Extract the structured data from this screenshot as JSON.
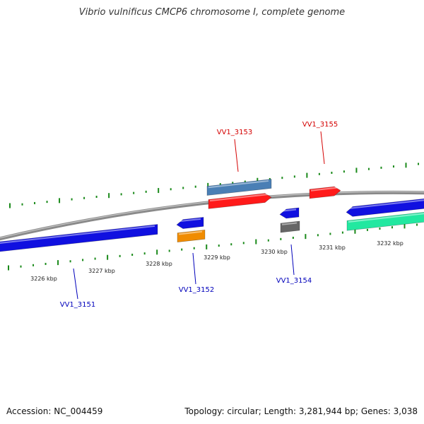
{
  "title": "Vibrio vulnificus CMCP6 chromosome I, complete genome",
  "accession_text": "Accession: NC_004459",
  "summary_text": "Topology: circular; Length: 3,281,944 bp; Genes: 3,038",
  "colors": {
    "backbone": "#8a8a8a",
    "tick": "#1a8a1a",
    "label_forward": "#d40000",
    "label_reverse": "#0000bb",
    "kbp_label": "#222222"
  },
  "kbp_labels": [
    "3226 kbp",
    "3227 kbp",
    "3228 kbp",
    "3229 kbp",
    "3230 kbp",
    "3231 kbp",
    "3232 kbp"
  ],
  "genes": [
    {
      "label": "VV1_3151",
      "strand": "reverse",
      "color": "#1010e0"
    },
    {
      "label": "VV1_3152",
      "strand": "reverse",
      "color": "#1010e0"
    },
    {
      "label": "VV1_3153",
      "strand": "forward",
      "color": "#ff1a1a"
    },
    {
      "label": "VV1_3154",
      "strand": "reverse",
      "color": "#1010e0"
    },
    {
      "label": "VV1_3155",
      "strand": "forward",
      "color": "#ff1a1a"
    }
  ],
  "features": [
    {
      "name": "VV1_3153-feature",
      "color": "#4a7fb5"
    },
    {
      "name": "VV1_3153-cds",
      "color": "#ff1a1a"
    },
    {
      "name": "VV1_3155-cds",
      "color": "#ff1a1a"
    },
    {
      "name": "VV1_3151-cds",
      "color": "#1010e0"
    },
    {
      "name": "VV1_3152-cds",
      "color": "#1010e0"
    },
    {
      "name": "VV1_3152-feature",
      "color": "#f08c00"
    },
    {
      "name": "VV1_3154-cds",
      "color": "#1010e0"
    },
    {
      "name": "VV1_3154-feature",
      "color": "#666666"
    },
    {
      "name": "next-gene-cds",
      "color": "#1010e0"
    },
    {
      "name": "next-gene-feature",
      "color": "#22e8a0"
    }
  ]
}
